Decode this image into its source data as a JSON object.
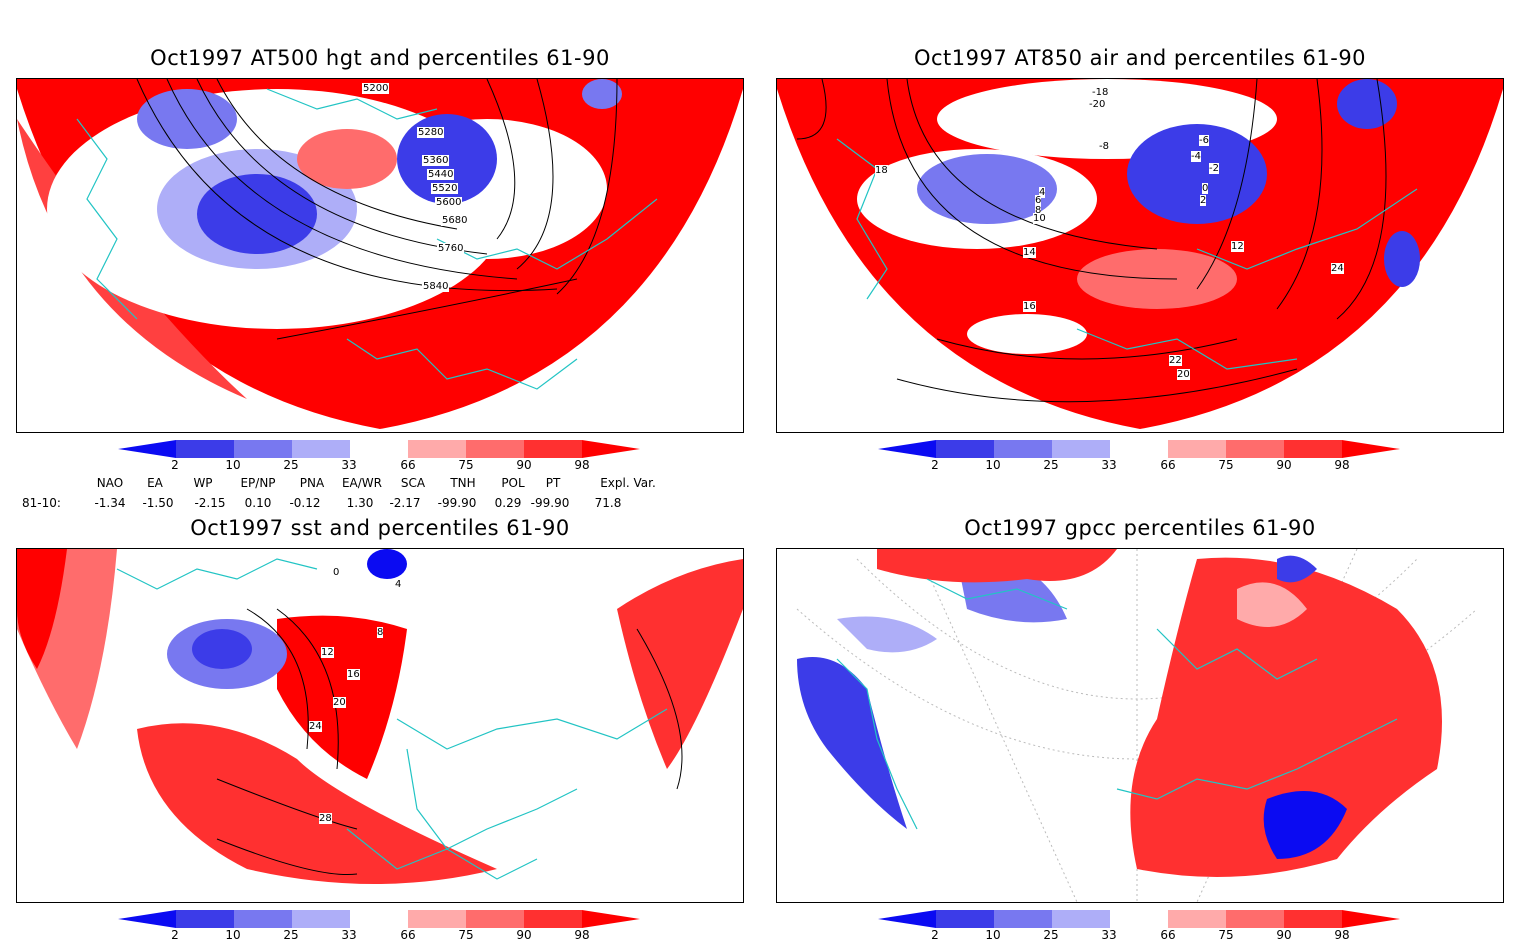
{
  "colors": {
    "coastline": "#22c4c4",
    "contour": "#000000",
    "frame": "#000000",
    "colorbar": [
      "#0b0bf2",
      "#3c3ce8",
      "#7878f0",
      "#aeaef8",
      "#ffffff",
      "#ffaaaa",
      "#ff6c6c",
      "#ff3030",
      "#ff0000"
    ]
  },
  "colorbar": {
    "labels": [
      "2",
      "10",
      "25",
      "33",
      "66",
      "75",
      "90",
      "98"
    ]
  },
  "panels": [
    {
      "title": "Oct1997 AT500 hgt and percentiles 61-90",
      "variable": "hgt",
      "contour_labels": [
        "5200",
        "5280",
        "5360",
        "5440",
        "5520",
        "5600",
        "5680",
        "5760",
        "5840"
      ]
    },
    {
      "title": "Oct1997 AT850 air and percentiles 61-90",
      "variable": "air",
      "contour_labels": [
        "-18",
        "-20",
        "-8",
        "-6",
        "-4",
        "-2",
        "0",
        "2",
        "4",
        "6",
        "8",
        "10",
        "12",
        "14",
        "16",
        "18",
        "20",
        "22",
        "24"
      ]
    },
    {
      "title": "Oct1997 sst and percentiles 61-90",
      "variable": "sst",
      "contour_labels": [
        "0",
        "4",
        "8",
        "12",
        "16",
        "20",
        "24",
        "28"
      ]
    },
    {
      "title": "Oct1997 gpcc percentiles 61-90",
      "variable": "precipitation",
      "contour_labels": []
    }
  ],
  "teleconnections": {
    "row_label": "81-10:",
    "indices": [
      {
        "name": "NAO",
        "value": "-1.34"
      },
      {
        "name": "EA",
        "value": "-1.50"
      },
      {
        "name": "WP",
        "value": "-2.15"
      },
      {
        "name": "EP/NP",
        "value": "0.10"
      },
      {
        "name": "PNA",
        "value": "-0.12"
      },
      {
        "name": "EA/WR",
        "value": "1.30"
      },
      {
        "name": "SCA",
        "value": "-2.17"
      },
      {
        "name": "TNH",
        "value": "-99.90"
      },
      {
        "name": "POL",
        "value": "0.29"
      },
      {
        "name": "PT",
        "value": "-99.90"
      },
      {
        "name": "Expl. Var.",
        "value": "71.8"
      }
    ]
  }
}
